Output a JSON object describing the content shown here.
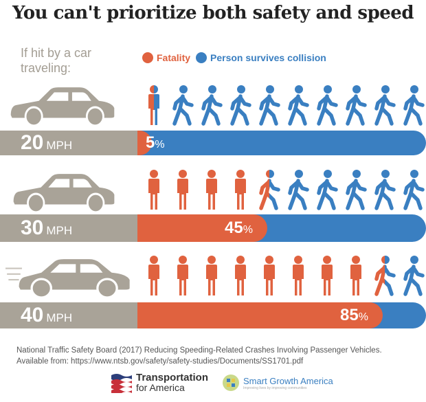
{
  "title": "You can't prioritize both safety and speed",
  "intro": "If hit by a car traveling:",
  "legend": {
    "fatality": "Fatality",
    "survivor": "Person survives collision"
  },
  "colors": {
    "fatality": "#e0623f",
    "survivor": "#3a7fc1",
    "car": "#a9a398"
  },
  "chart_data": {
    "type": "bar",
    "title": "You can't prioritize both safety and speed",
    "categories": [
      "20 MPH",
      "30 MPH",
      "40 MPH"
    ],
    "series": [
      {
        "name": "Fatality",
        "values": [
          5,
          45,
          85
        ]
      }
    ],
    "unit": "%",
    "ylim": [
      0,
      100
    ],
    "rows": [
      {
        "speed": "20",
        "unit": "MPH",
        "pct": "5",
        "pct_sign": "%",
        "value": 5,
        "figures": [
          "split",
          "survivor",
          "survivor",
          "survivor",
          "survivor",
          "survivor",
          "survivor",
          "survivor",
          "survivor",
          "survivor"
        ]
      },
      {
        "speed": "30",
        "unit": "MPH",
        "pct": "45",
        "pct_sign": "%",
        "value": 45,
        "figures": [
          "fatality",
          "fatality",
          "fatality",
          "fatality",
          "split",
          "survivor",
          "survivor",
          "survivor",
          "survivor",
          "survivor"
        ]
      },
      {
        "speed": "40",
        "unit": "MPH",
        "pct": "85",
        "pct_sign": "%",
        "value": 85,
        "figures": [
          "fatality",
          "fatality",
          "fatality",
          "fatality",
          "fatality",
          "fatality",
          "fatality",
          "fatality",
          "split",
          "survivor"
        ]
      }
    ]
  },
  "source": {
    "line1": "National Traffic Safety Board (2017) Reducing Speeding-Related Crashes Involving Passenger Vehicles.",
    "line2": "Available from: https://www.ntsb.gov/safety/safety-studies/Documents/SS1701.pdf"
  },
  "logos": {
    "tfa_line1": "Transportation",
    "tfa_line2": "for America",
    "sga_name": "Smart Growth America",
    "sga_tagline": "Improving lives by improving communities"
  }
}
